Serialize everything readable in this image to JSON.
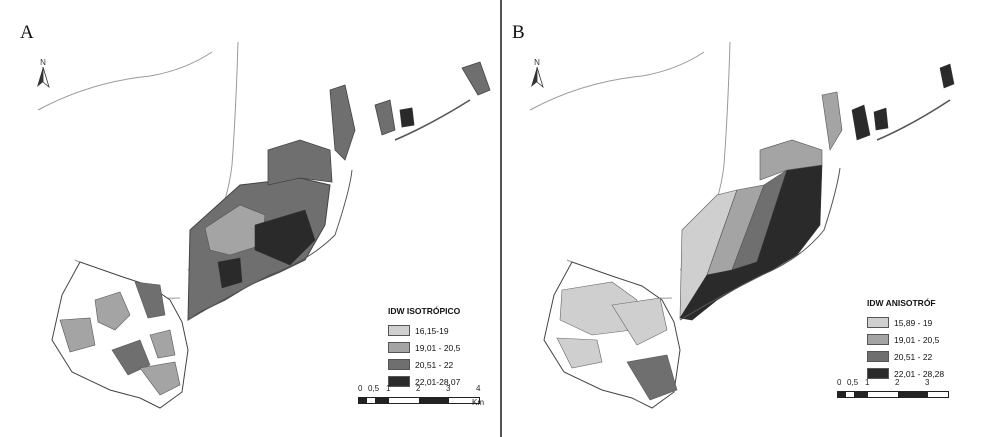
{
  "panels": [
    {
      "letter": "A",
      "north": "N",
      "legend": {
        "title": "IDW ISOTRÓPICO",
        "classes": [
          {
            "label": "16,15-19",
            "color": "#cfcfcf"
          },
          {
            "label": "19,01 - 20,5",
            "color": "#a4a4a4"
          },
          {
            "label": "20,51 - 22",
            "color": "#6f6f6f"
          },
          {
            "label": "22,01-28,07",
            "color": "#2a2a2a"
          }
        ]
      },
      "scale": {
        "ticks": [
          "0",
          "0,5",
          "1",
          "2",
          "3",
          "4"
        ],
        "unit": "Km"
      }
    },
    {
      "letter": "B",
      "north": "N",
      "legend": {
        "title": "IDW ANISOTRÓF",
        "classes": [
          {
            "label": "15,89 - 19",
            "color": "#cfcfcf"
          },
          {
            "label": "19,01 - 20,5",
            "color": "#a4a4a4"
          },
          {
            "label": "20,51 - 22",
            "color": "#6f6f6f"
          },
          {
            "label": "22,01 - 28,28",
            "color": "#2a2a2a"
          }
        ]
      },
      "scale": {
        "ticks": [
          "0",
          "0,5",
          "1",
          "2",
          "3"
        ],
        "unit": ""
      }
    }
  ]
}
